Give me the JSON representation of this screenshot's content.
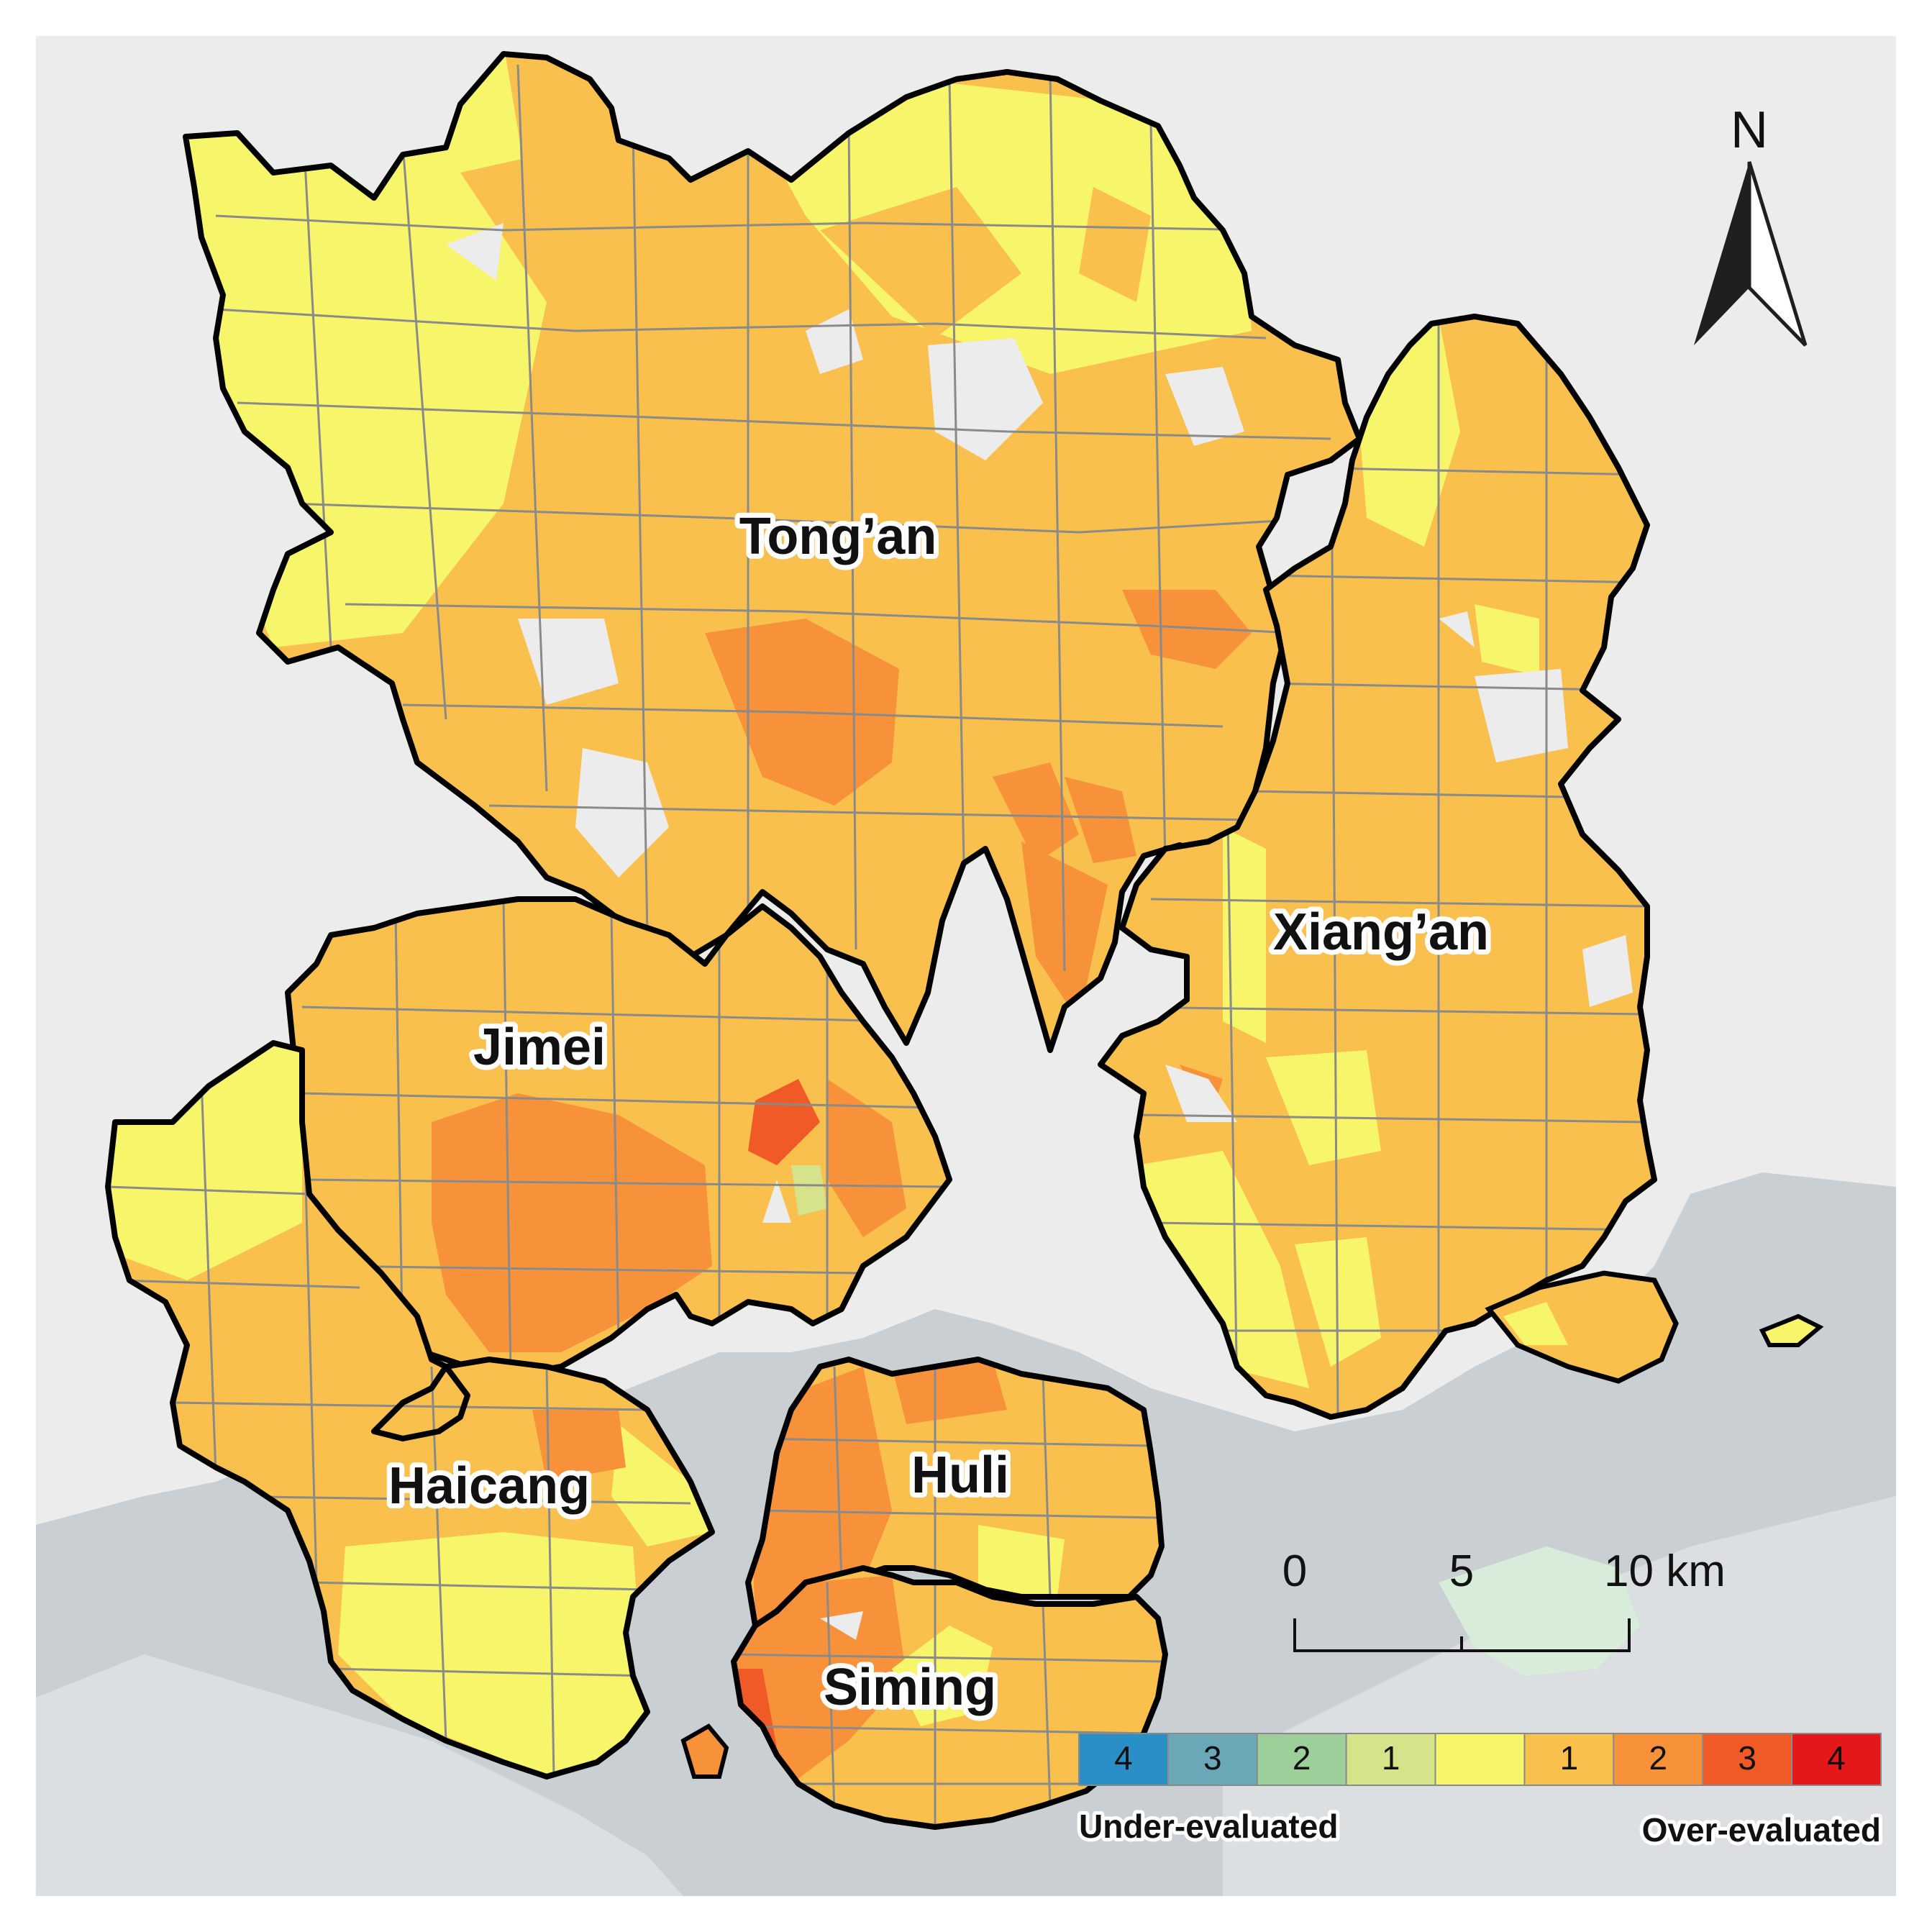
{
  "map": {
    "districts": [
      {
        "id": "tongan",
        "name": "Tong’an",
        "fill": "#f9c04d"
      },
      {
        "id": "xiangan",
        "name": "Xiang’an",
        "fill": "#f9c04d"
      },
      {
        "id": "jimei",
        "name": "Jimei",
        "fill": "#f9c04d"
      },
      {
        "id": "haicang",
        "name": "Haicang",
        "fill": "#f9c04d"
      },
      {
        "id": "huli",
        "name": "Huli",
        "fill": "#f9c04d"
      },
      {
        "id": "siming",
        "name": "Siming",
        "fill": "#f9c04d"
      }
    ],
    "scale_bar": {
      "ticks": [
        "0",
        "5",
        "10 km"
      ]
    },
    "north_arrow": {
      "label": "N"
    },
    "legend": {
      "classes": [
        {
          "label": "4",
          "color": "#2a8fc7"
        },
        {
          "label": "3",
          "color": "#6aa8b8"
        },
        {
          "label": "2",
          "color": "#9ccf9a"
        },
        {
          "label": "1",
          "color": "#d6e38a"
        },
        {
          "label": "",
          "color": "#f7f56a"
        },
        {
          "label": "1",
          "color": "#f9c04d"
        },
        {
          "label": "2",
          "color": "#f7923a"
        },
        {
          "label": "3",
          "color": "#f05a26"
        },
        {
          "label": "4",
          "color": "#e4181b"
        }
      ],
      "left_caption": "Under-evaluated",
      "right_caption": "Over-evaluated"
    },
    "colors": {
      "sea": "#c9cfd2",
      "land": "#ececec",
      "neutral": "#f7f56a",
      "over1": "#f9c04d",
      "over2": "#f7923a",
      "over3": "#f05a26"
    }
  }
}
